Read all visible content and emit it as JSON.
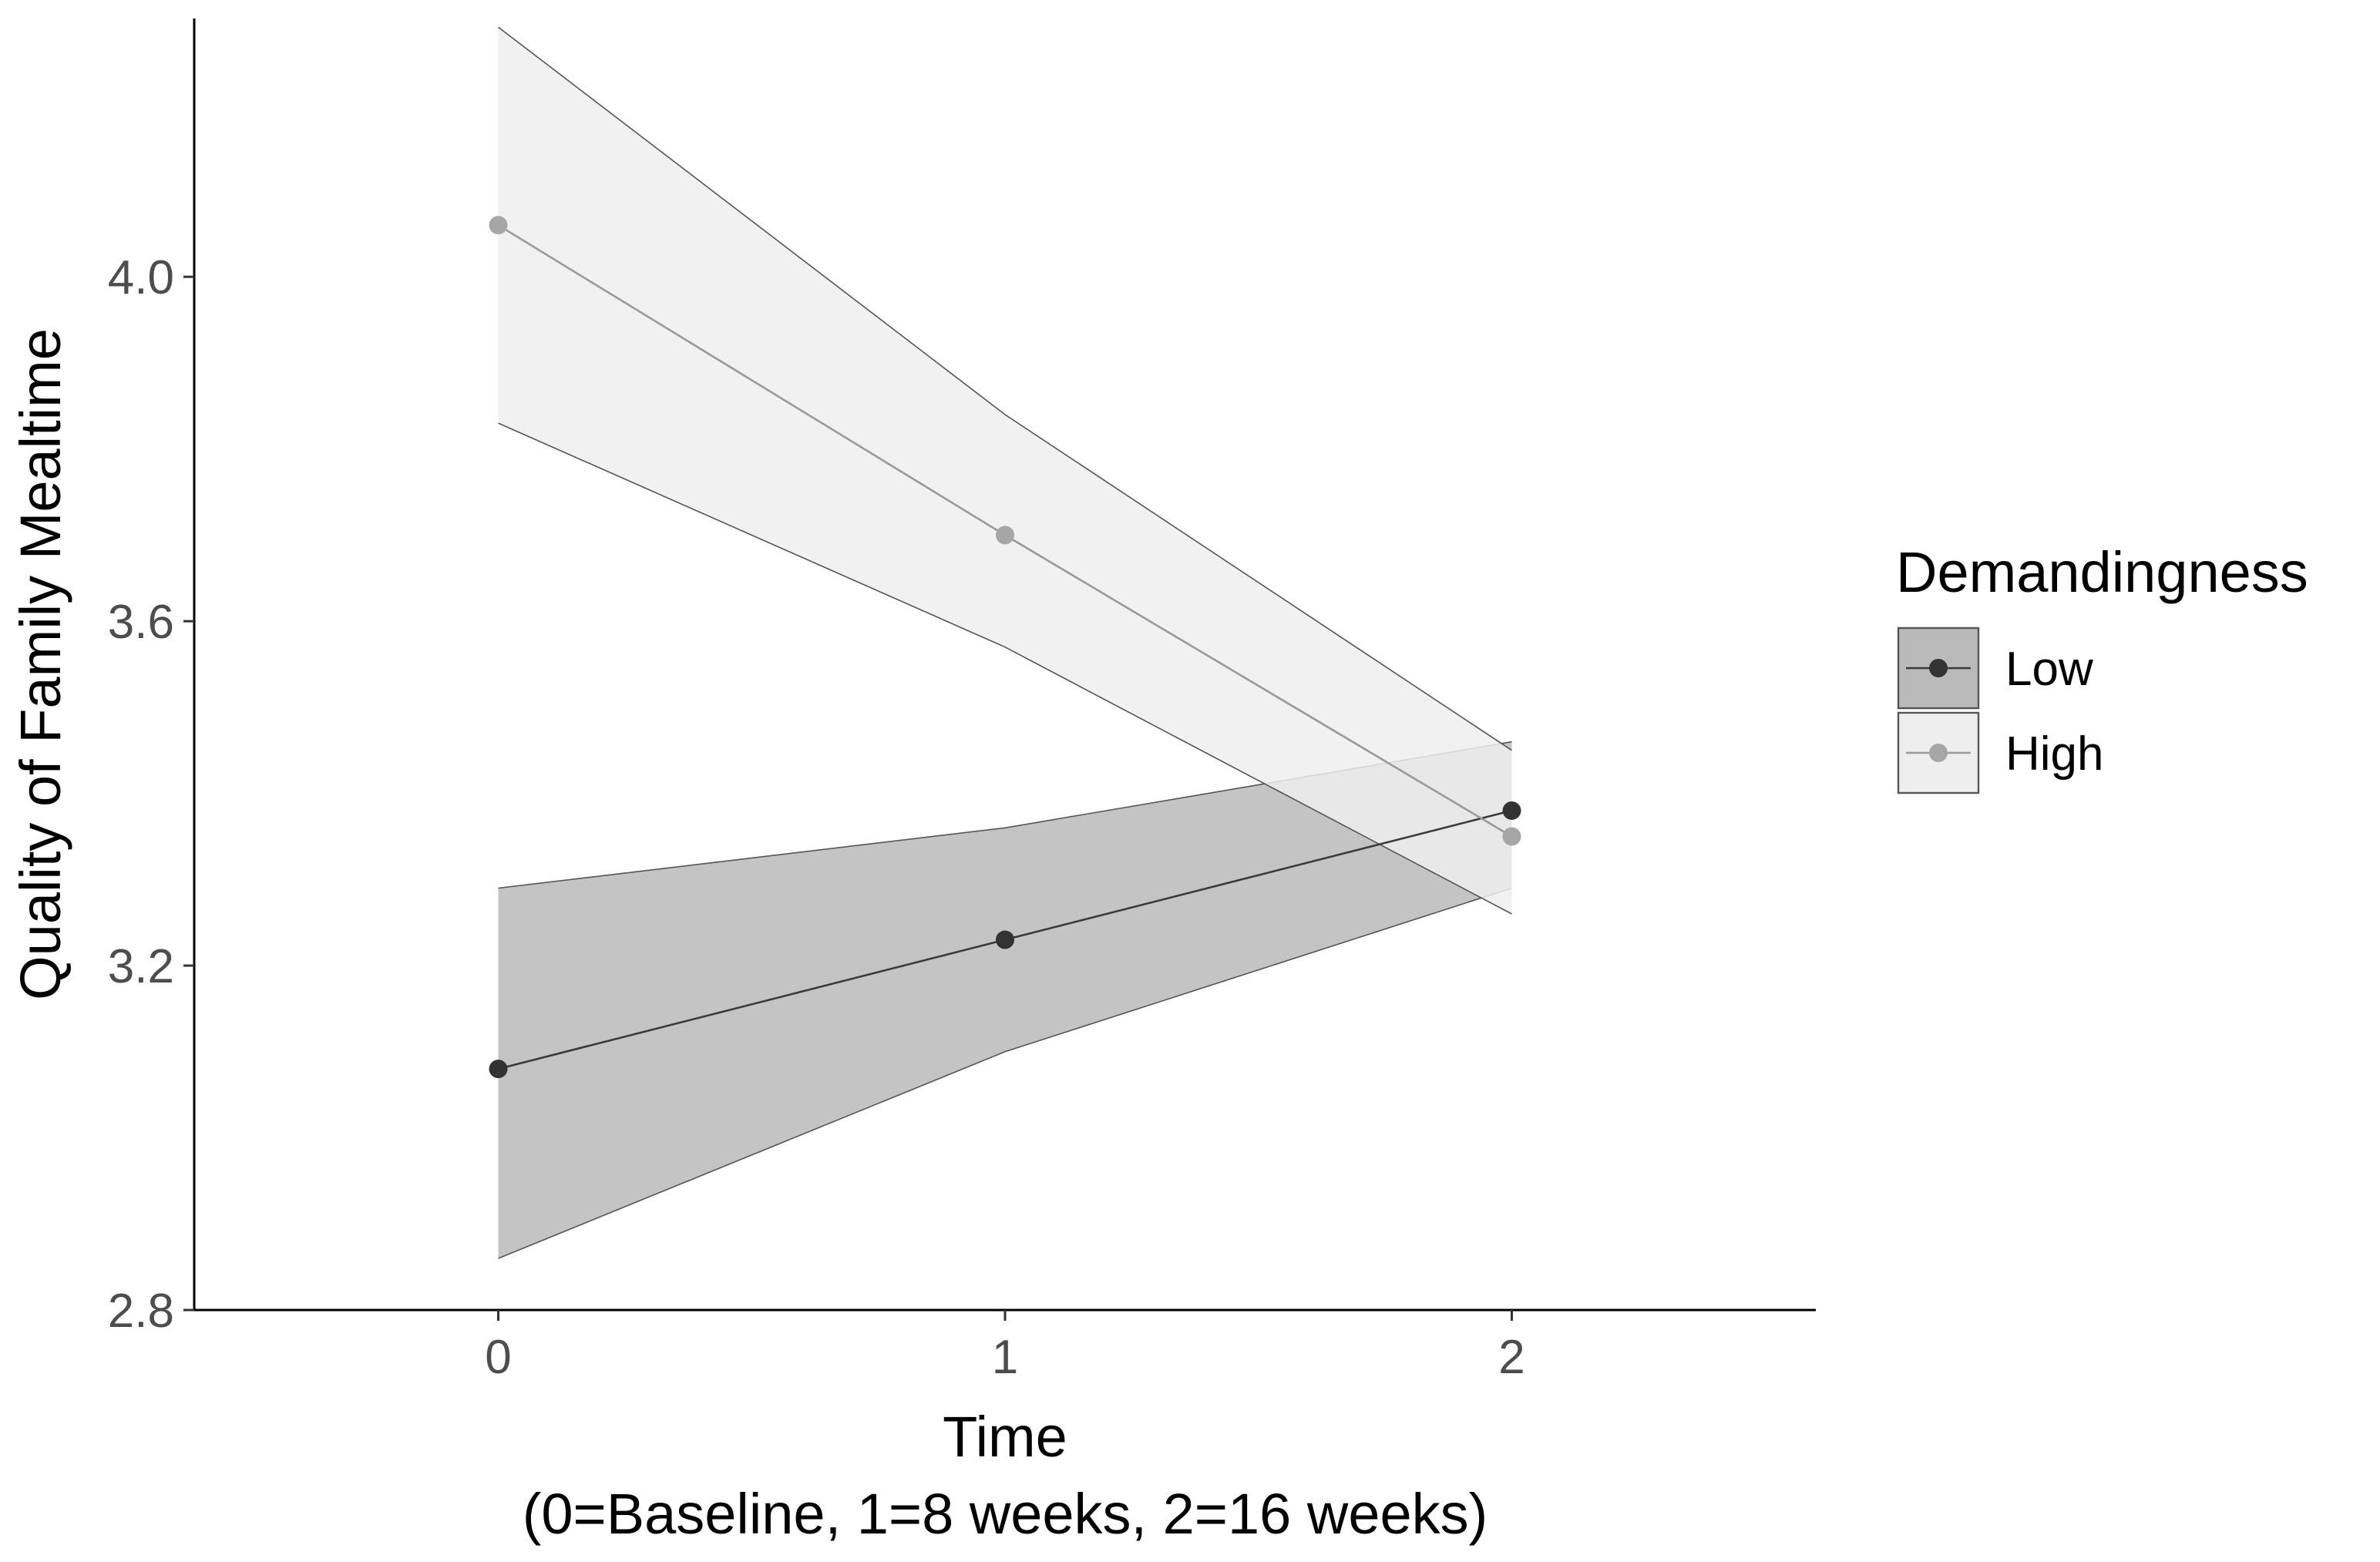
{
  "chart_data": {
    "type": "line",
    "title": "",
    "xlabel": "Time",
    "xlabel_sub": "(0=Baseline, 1=8 weeks, 2=16 weeks)",
    "ylabel": "Quality of Family Mealtime",
    "x": [
      0,
      1,
      2
    ],
    "xlim": [
      -0.6,
      2.6
    ],
    "ylim": [
      2.8,
      4.3
    ],
    "x_ticks": [
      0,
      1,
      2
    ],
    "x_tick_labels": [
      "0",
      "1",
      "2"
    ],
    "y_ticks": [
      2.8,
      3.2,
      3.6,
      4.0
    ],
    "y_tick_labels": [
      "2.8",
      "3.2",
      "3.6",
      "4.0"
    ],
    "grid": false,
    "legend": {
      "title": "Demandingness",
      "position": "right"
    },
    "series": [
      {
        "name": "Low",
        "values": [
          3.08,
          3.23,
          3.38
        ],
        "ci_lower": [
          2.86,
          3.1,
          3.29
        ],
        "ci_upper": [
          3.29,
          3.36,
          3.46
        ],
        "line_color": "#3a3a3a",
        "point_color": "#333333",
        "band_color": "#bababa"
      },
      {
        "name": "High",
        "values": [
          4.06,
          3.7,
          3.35
        ],
        "ci_lower": [
          3.83,
          3.57,
          3.26
        ],
        "ci_upper": [
          4.29,
          3.84,
          3.45
        ],
        "line_color": "#9a9a9a",
        "point_color": "#a6a6a6",
        "band_color": "#eeeeee"
      }
    ]
  }
}
